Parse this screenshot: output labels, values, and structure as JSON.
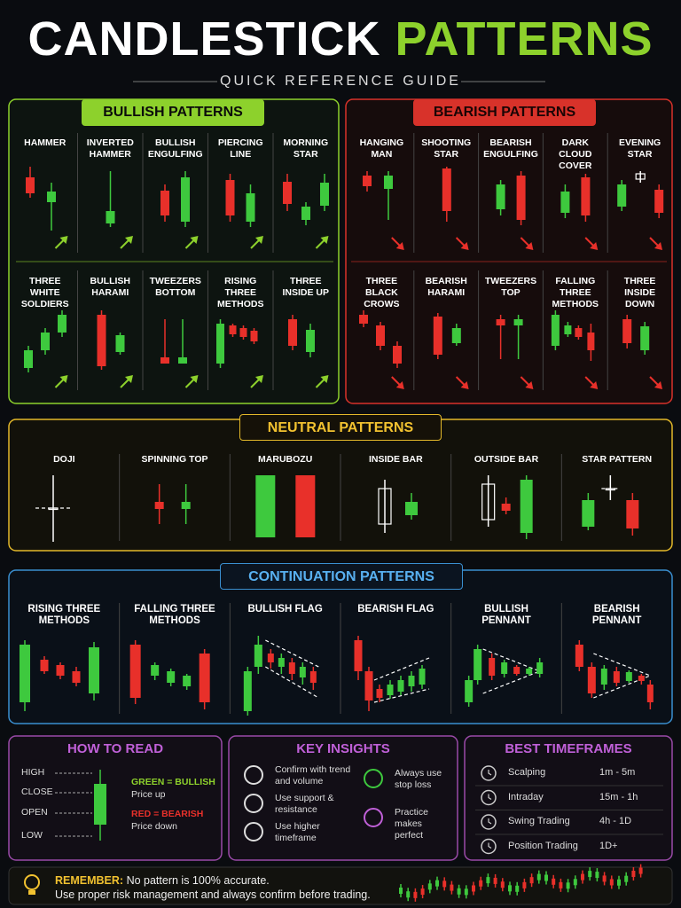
{
  "header": {
    "title_part1": "CANDLESTICK",
    "title_part2": "PATTERNS",
    "subtitle": "QUICK REFERENCE GUIDE"
  },
  "bullish": {
    "title": "BULLISH PATTERNS",
    "patterns": [
      "HAMMER",
      "INVERTED HAMMER",
      "BULLISH ENGULFING",
      "PIERCING LINE",
      "MORNING STAR",
      "THREE WHITE SOLDIERS",
      "BULLISH HARAMI",
      "TWEEZERS BOTTOM",
      "RISING THREE METHODS",
      "THREE INSIDE UP"
    ]
  },
  "bearish": {
    "title": "BEARISH PATTERNS",
    "patterns": [
      "HANGING MAN",
      "SHOOTING STAR",
      "BEARISH ENGULFING",
      "DARK CLOUD COVER",
      "EVENING STAR",
      "THREE BLACK CROWS",
      "BEARISH HARAMI",
      "TWEEZERS TOP",
      "FALLING THREE METHODS",
      "THREE INSIDE DOWN"
    ]
  },
  "neutral": {
    "title": "NEUTRAL PATTERNS",
    "patterns": [
      "DOJI",
      "SPINNING TOP",
      "MARUBOZU",
      "INSIDE BAR",
      "OUTSIDE BAR",
      "STAR PATTERN"
    ]
  },
  "continuation": {
    "title": "CONTINUATION PATTERNS",
    "patterns": [
      "RISING THREE METHODS",
      "FALLING THREE METHODS",
      "BULLISH FLAG",
      "BEARISH FLAG",
      "BULLISH PENNANT",
      "BEARISH PENNANT"
    ]
  },
  "how_to_read": {
    "title": "HOW TO READ",
    "levels": [
      "HIGH",
      "CLOSE",
      "OPEN",
      "LOW"
    ],
    "green": "GREEN = BULLISH",
    "green_note": "Price up",
    "red": "RED = BEARISH",
    "red_note": "Price down"
  },
  "key_insights": {
    "title": "KEY INSIGHTS",
    "items": [
      "Confirm with trend and volume",
      "Use support & resistance",
      "Use higher timeframe",
      "Always use stop loss",
      "Practice makes perfect"
    ]
  },
  "best_timeframes": {
    "title": "BEST TIMEFRAMES",
    "rows": [
      [
        "Scalping",
        "1m - 5m"
      ],
      [
        "Intraday",
        "15m - 1h"
      ],
      [
        "Swing Trading",
        "4h - 1D"
      ],
      [
        "Position Trading",
        "1D+"
      ]
    ]
  },
  "footer": {
    "label": "REMEMBER:",
    "line1": "No pattern is 100% accurate.",
    "line2": "Use proper risk management and always confirm before trading."
  }
}
